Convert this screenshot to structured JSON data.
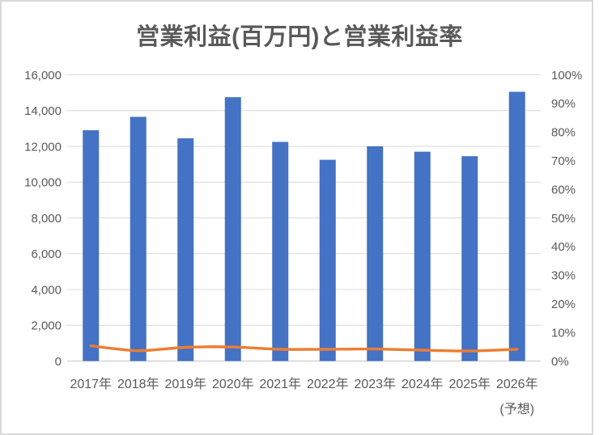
{
  "chart_data": {
    "type": "combo",
    "title": "営業利益(百万円)と営業利益率",
    "categories": [
      "2017年",
      "2018年",
      "2019年",
      "2020年",
      "2021年",
      "2022年",
      "2023年",
      "2024年",
      "2025年",
      "2026年"
    ],
    "last_category_note": "(予想)",
    "series": [
      {
        "name": "営業利益(百万円)",
        "type": "bar",
        "axis": "left",
        "values": [
          12900,
          13650,
          12450,
          14750,
          12250,
          11250,
          12000,
          11700,
          11450,
          15050
        ],
        "color": "#4472C4"
      },
      {
        "name": "営業利益率",
        "type": "line",
        "axis": "right",
        "values": [
          5.3,
          3.6,
          4.8,
          4.9,
          4.1,
          4.1,
          4.2,
          3.8,
          3.5,
          4.1
        ],
        "color": "#ED7D31"
      }
    ],
    "left_axis": {
      "min": 0,
      "max": 16000,
      "step": 2000,
      "tick_labels": [
        "0",
        "2,000",
        "4,000",
        "6,000",
        "8,000",
        "10,000",
        "12,000",
        "14,000",
        "16,000"
      ]
    },
    "right_axis": {
      "min": 0,
      "max": 100,
      "step": 10,
      "tick_labels": [
        "0%",
        "10%",
        "20%",
        "30%",
        "40%",
        "50%",
        "60%",
        "70%",
        "80%",
        "90%",
        "100%"
      ]
    },
    "grid": true,
    "legend": "none",
    "colors": {
      "grid": "#D9D9D9",
      "axis_line": "#C6C6C6",
      "text": "#595959",
      "frame": "#D9D9D9"
    }
  }
}
